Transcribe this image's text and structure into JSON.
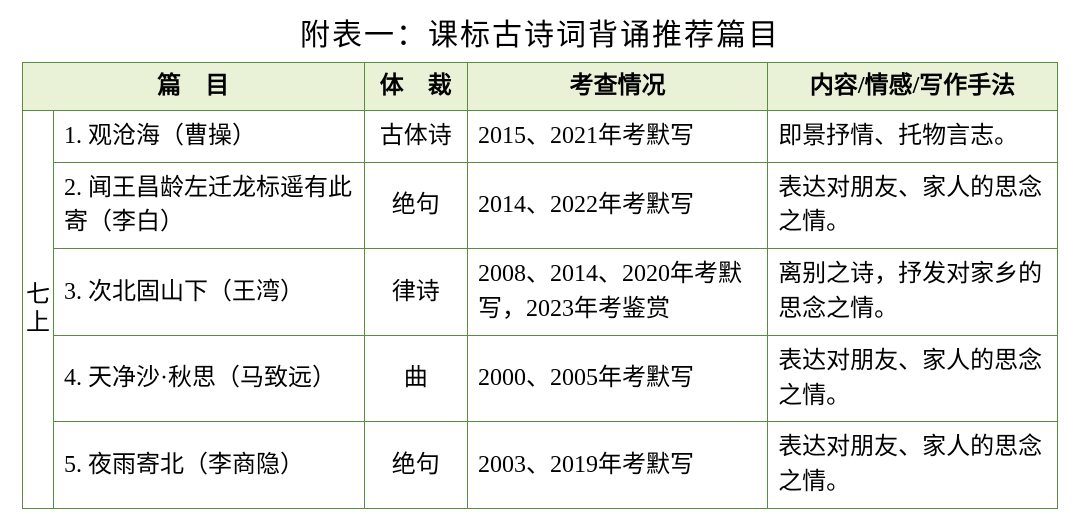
{
  "page": {
    "title": "附表一：课标古诗词背诵推荐篇目"
  },
  "colors": {
    "border": "#588c3f",
    "header_bg": "#e9f2d7",
    "text": "#000000",
    "background": "#ffffff"
  },
  "table": {
    "columns": [
      "篇　目",
      "体　裁",
      "考查情况",
      "内容/情感/写作手法"
    ],
    "grade_label": "七上",
    "rows": [
      {
        "title": "1. 观沧海（曹操）",
        "genre": "古体诗",
        "exam": "2015、2021年考默写",
        "note": "即景抒情、托物言志。"
      },
      {
        "title": "2. 闻王昌龄左迁龙标遥有此寄（李白）",
        "genre": "绝句",
        "exam": "2014、2022年考默写",
        "note": "表达对朋友、家人的思念之情。"
      },
      {
        "title": "3. 次北固山下（王湾）",
        "genre": "律诗",
        "exam": "2008、2014、2020年考默写，2023年考鉴赏",
        "note": "离别之诗，抒发对家乡的思念之情。"
      },
      {
        "title": "4. 天净沙·秋思（马致远）",
        "genre": "曲",
        "exam": "2000、2005年考默写",
        "note": "表达对朋友、家人的思念之情。"
      },
      {
        "title": "5. 夜雨寄北（李商隐）",
        "genre": "绝句",
        "exam": "2003、2019年考默写",
        "note": "表达对朋友、家人的思念之情。"
      }
    ]
  }
}
